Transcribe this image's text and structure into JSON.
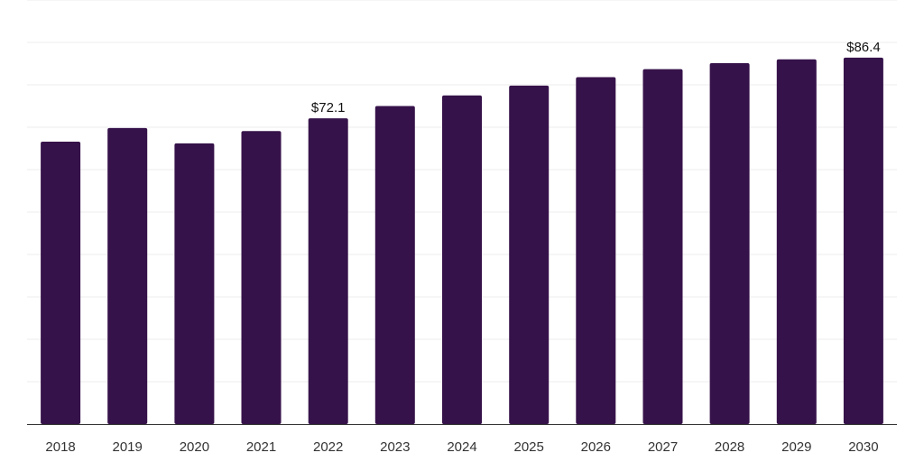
{
  "chart_data": {
    "type": "bar",
    "title": "",
    "xlabel": "",
    "ylabel": "",
    "categories": [
      "2018",
      "2019",
      "2020",
      "2021",
      "2022",
      "2023",
      "2024",
      "2025",
      "2026",
      "2027",
      "2028",
      "2029",
      "2030"
    ],
    "values": [
      66.6,
      69.8,
      66.2,
      69.1,
      72.1,
      75.0,
      77.5,
      79.8,
      81.8,
      83.7,
      85.1,
      86.0,
      86.4
    ],
    "data_labels": [
      {
        "category": "2022",
        "text": "$72.1"
      },
      {
        "category": "2030",
        "text": "$86.4"
      }
    ],
    "ylim": [
      0,
      100
    ],
    "grid": true,
    "legend": "none",
    "colors": {
      "bar": "#36124a",
      "gridline": "#eeeeee",
      "axis": "#333333"
    }
  }
}
